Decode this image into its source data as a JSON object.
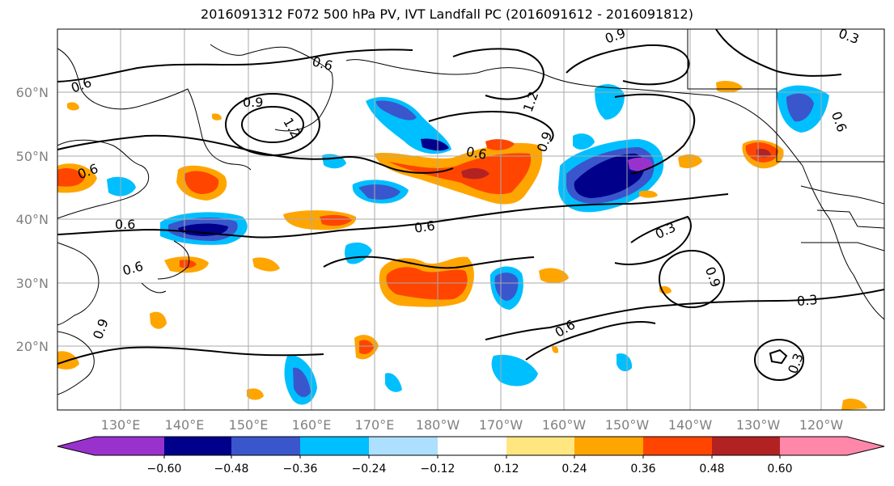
{
  "title": "2016091312 F072 500 hPa PV, IVT Landfall PC (2016091612 - 2016091812)",
  "map": {
    "lon_ticks": [
      "130°E",
      "140°E",
      "150°E",
      "160°E",
      "170°E",
      "180°W",
      "170°W",
      "160°W",
      "150°W",
      "140°W",
      "130°W",
      "120°W"
    ],
    "lat_ticks": [
      "60°N",
      "50°N",
      "40°N",
      "30°N",
      "20°N"
    ],
    "contour_labels": [
      "0.6",
      "0.6",
      "0.6",
      "0.9",
      "1.2",
      "0.6",
      "0.6",
      "0.9",
      "0.6",
      "0.6",
      "1.2",
      "0.3",
      "0.9",
      "0.3",
      "0.6",
      "0.3",
      "0.9",
      "0.3",
      "0.9",
      "0.6"
    ]
  },
  "colorbar": {
    "tick_labels": [
      "−0.60",
      "−0.48",
      "−0.36",
      "−0.24",
      "−0.12",
      "0.12",
      "0.24",
      "0.36",
      "0.48",
      "0.60"
    ],
    "colors": [
      "#9932CC",
      "#00008B",
      "#3A56CC",
      "#00BFFF",
      "#ADDFFF",
      "#FFFFFF",
      "#FFE680",
      "#FFA500",
      "#FF4500",
      "#B22222",
      "#FF88AA"
    ]
  }
}
